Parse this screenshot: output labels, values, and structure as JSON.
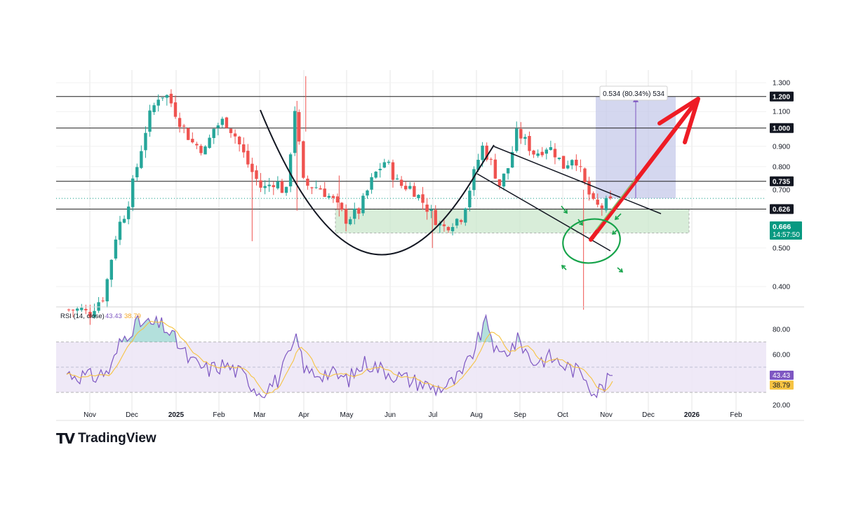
{
  "watermark": {
    "brand": "TradingView"
  },
  "colors": {
    "up": "#26a69a",
    "down": "#ef5350",
    "grid": "#e6e6e6",
    "level": "#1f1f1f",
    "rsi": "#7e57c2",
    "rsi_ma": "#f6c343",
    "rsi_band": "#ede7f6",
    "zone": "#c8e6c9",
    "target": "#c5cae9",
    "arrow": "#ee1c25",
    "circle": "#16a34a",
    "last_price_bg": "#089981"
  },
  "price_axis": {
    "ticks": [
      "1.300",
      "1.100",
      "0.900",
      "0.800",
      "0.700",
      "0.500",
      "0.400"
    ],
    "levels": [
      {
        "value": 1.2,
        "label": "1.200"
      },
      {
        "value": 1.0,
        "label": "1.000"
      },
      {
        "value": 0.735,
        "label": "0.735"
      },
      {
        "value": 0.626,
        "label": "0.626"
      }
    ],
    "last_price": {
      "value": 0.666,
      "label": "0.666",
      "countdown": "14:57:50"
    }
  },
  "time_axis": {
    "labels": [
      "Nov",
      "Dec",
      "2025",
      "Feb",
      "Mar",
      "Apr",
      "May",
      "Jun",
      "Jul",
      "Aug",
      "Sep",
      "Oct",
      "Nov",
      "Dec",
      "2026",
      "Feb"
    ]
  },
  "rsi_panel": {
    "title": "RSI (14, close)",
    "value": "43.43",
    "ma_value": "38.79",
    "ticks": [
      "80.00",
      "60.00",
      "20.00"
    ],
    "badges": [
      {
        "label": "43.43"
      },
      {
        "label": "38.79"
      }
    ]
  },
  "measure": {
    "label": "0.534 (80.34%) 534"
  },
  "chart_data": {
    "type": "candlestick",
    "scale": "log",
    "ylim": [
      0.33,
      1.42
    ],
    "x": [
      "Nov",
      "Dec",
      "2025",
      "Feb",
      "Mar",
      "Apr",
      "May",
      "Jun",
      "Jul",
      "Aug",
      "Sep",
      "Oct",
      "Nov",
      "Dec",
      "2026",
      "Feb"
    ],
    "anchors": [
      [
        0,
        0.35
      ],
      [
        20,
        0.35
      ],
      [
        28,
        0.34
      ],
      [
        35,
        0.36
      ],
      [
        45,
        0.38
      ],
      [
        60,
        0.56
      ],
      [
        70,
        0.62
      ],
      [
        80,
        0.76
      ],
      [
        95,
        1.05
      ],
      [
        108,
        1.22
      ],
      [
        118,
        1.2
      ],
      [
        130,
        1.05
      ],
      [
        145,
        0.92
      ],
      [
        160,
        0.88
      ],
      [
        170,
        1.0
      ],
      [
        182,
        1.05
      ],
      [
        195,
        0.95
      ],
      [
        210,
        0.8
      ],
      [
        225,
        0.7
      ],
      [
        240,
        0.74
      ],
      [
        252,
        0.68
      ],
      [
        262,
        1.12
      ],
      [
        272,
        0.72
      ],
      [
        290,
        0.71
      ],
      [
        305,
        0.66
      ],
      [
        320,
        0.59
      ],
      [
        335,
        0.62
      ],
      [
        352,
        0.76
      ],
      [
        365,
        0.83
      ],
      [
        380,
        0.72
      ],
      [
        395,
        0.71
      ],
      [
        415,
        0.62
      ],
      [
        430,
        0.56
      ],
      [
        440,
        0.58
      ],
      [
        452,
        0.6
      ],
      [
        462,
        0.72
      ],
      [
        475,
        0.9
      ],
      [
        485,
        0.82
      ],
      [
        495,
        0.72
      ],
      [
        505,
        0.8
      ],
      [
        515,
        0.98
      ],
      [
        525,
        0.92
      ],
      [
        535,
        0.86
      ],
      [
        548,
        0.9
      ],
      [
        556,
        0.88
      ],
      [
        568,
        0.8
      ],
      [
        580,
        0.86
      ],
      [
        592,
        0.72
      ],
      [
        602,
        0.64
      ],
      [
        610,
        0.63
      ],
      [
        621,
        0.66
      ]
    ],
    "candle_count": 128,
    "last_close": 0.666
  }
}
